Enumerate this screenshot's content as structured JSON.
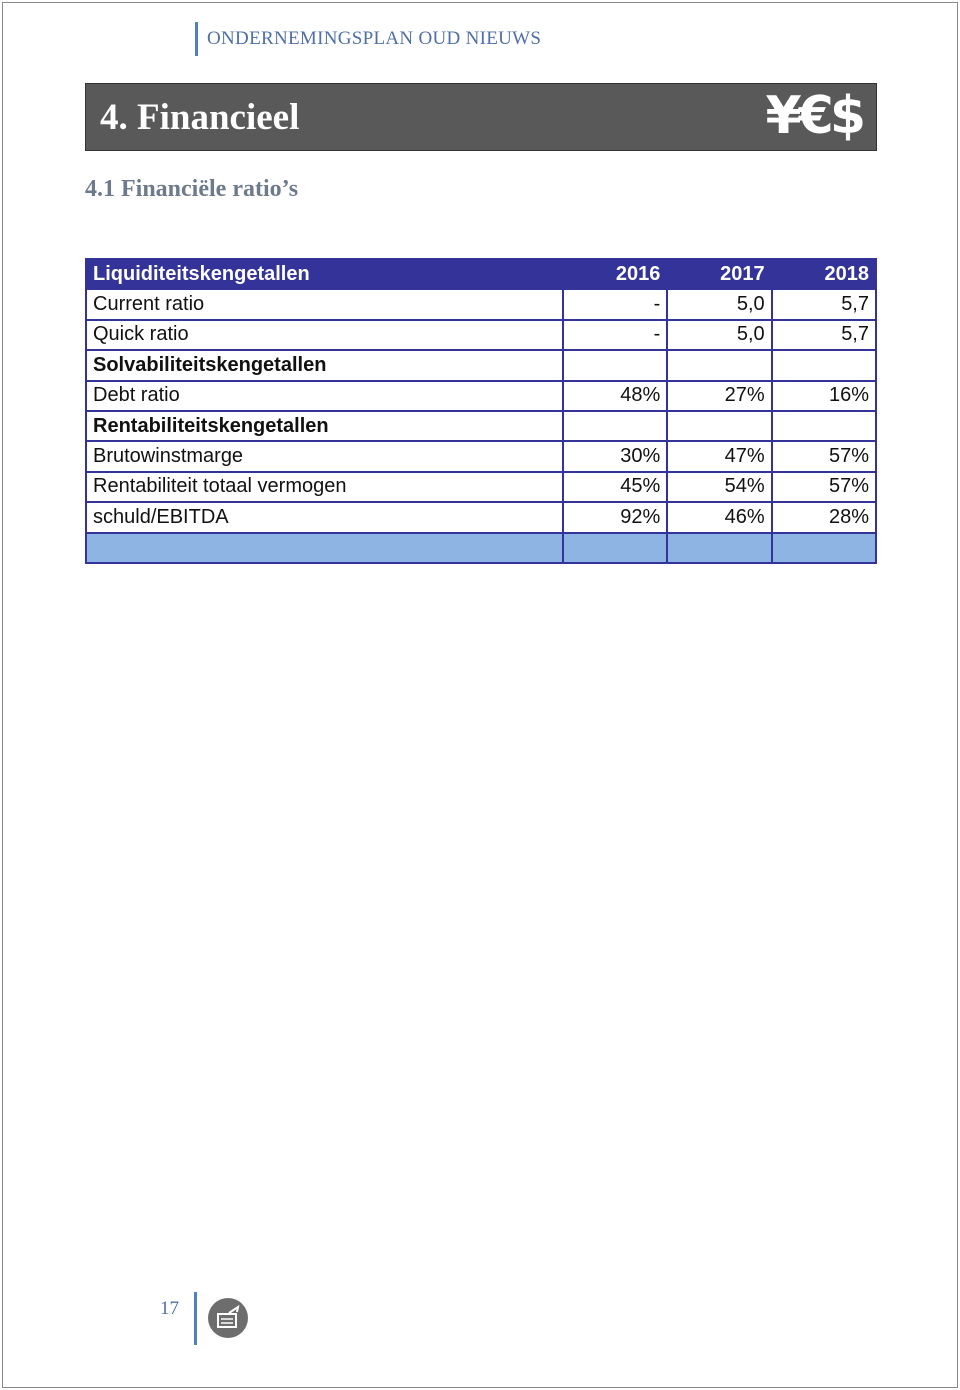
{
  "header": {
    "running_title": "ONDERNEMINGSPLAN OUD NIEUWS"
  },
  "chapter": {
    "title": "4. Financieel",
    "icon": "¥€$"
  },
  "section": {
    "title": "4.1 Financiële ratio’s"
  },
  "table": {
    "columns": [
      "Liquiditeitskengetallen",
      "2016",
      "2017",
      "2018"
    ],
    "rows": [
      {
        "label": "Current ratio",
        "values": [
          "-",
          "5,0",
          "5,7"
        ]
      },
      {
        "label": "Quick ratio",
        "values": [
          "-",
          "5,0",
          "5,7"
        ]
      },
      {
        "label": "Solvabiliteitskengetallen"
      },
      {
        "label": "Debt ratio",
        "values": [
          "48%",
          "27%",
          "16%"
        ]
      },
      {
        "label": "Rentabiliteitskengetallen"
      },
      {
        "label": "Brutowinstmarge",
        "values": [
          "30%",
          "47%",
          "57%"
        ]
      },
      {
        "label": "Rentabiliteit totaal vermogen",
        "values": [
          "45%",
          "54%",
          "57%"
        ]
      },
      {
        "label": "schuld/EBITDA",
        "values": [
          "92%",
          "46%",
          "28%"
        ]
      }
    ]
  },
  "footer": {
    "page_number": "17"
  }
}
